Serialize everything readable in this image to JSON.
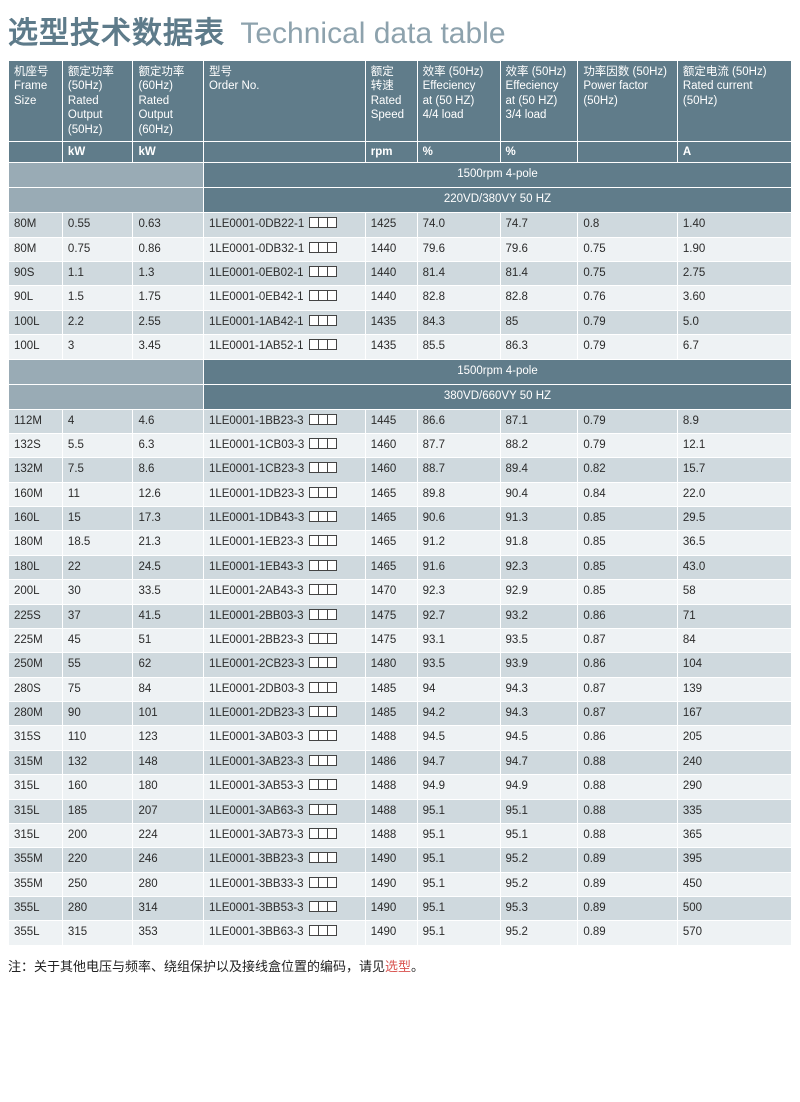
{
  "title": {
    "cn": "选型技术数据表",
    "en": "Technical data table"
  },
  "headers": {
    "frame": "机座号\nFrame\nSize",
    "kw50": "额定功率\n(50Hz)\nRated Output\n(50Hz)",
    "kw60": "额定功率\n(60Hz)\nRated Output\n(60Hz)",
    "order": "型号\nOrder No.",
    "rpm": "额定\n转速\nRated\nSpeed",
    "eff44": "效率  (50Hz)\nEffeciency\nat (50 HZ)\n4/4 load",
    "eff34": "效率 (50Hz)\nEffeciency\nat (50 HZ)\n3/4 load",
    "pf": "功率因数 (50Hz)\nPower factor\n(50Hz)",
    "cur": "额定电流  (50Hz)\nRated current\n(50Hz)"
  },
  "units": {
    "kw50": "kW",
    "kw60": "kW",
    "rpm": "rpm",
    "eff44": "%",
    "eff34": "%",
    "cur": "A"
  },
  "section1": {
    "pole": "1500rpm 4-pole",
    "volt": "220VD/380VY  50 HZ"
  },
  "section2": {
    "pole": "1500rpm 4-pole",
    "volt": "380VD/660VY  50 HZ"
  },
  "rows1": [
    {
      "frame": "80M",
      "kw50": "0.55",
      "kw60": "0.63",
      "order": "1LE0001-0DB22-1",
      "rpm": "1425",
      "e44": "74.0",
      "e34": "74.7",
      "pf": "0.8",
      "cur": "1.40"
    },
    {
      "frame": "80M",
      "kw50": "0.75",
      "kw60": "0.86",
      "order": "1LE0001-0DB32-1",
      "rpm": "1440",
      "e44": "79.6",
      "e34": "79.6",
      "pf": "0.75",
      "cur": "1.90"
    },
    {
      "frame": "90S",
      "kw50": "1.1",
      "kw60": "1.3",
      "order": "1LE0001-0EB02-1",
      "rpm": "1440",
      "e44": "81.4",
      "e34": "81.4",
      "pf": "0.75",
      "cur": "2.75"
    },
    {
      "frame": "90L",
      "kw50": "1.5",
      "kw60": "1.75",
      "order": "1LE0001-0EB42-1",
      "rpm": "1440",
      "e44": "82.8",
      "e34": "82.8",
      "pf": "0.76",
      "cur": "3.60"
    },
    {
      "frame": "100L",
      "kw50": "2.2",
      "kw60": "2.55",
      "order": "1LE0001-1AB42-1",
      "rpm": "1435",
      "e44": "84.3",
      "e34": "85",
      "pf": "0.79",
      "cur": "5.0"
    },
    {
      "frame": "100L",
      "kw50": "3",
      "kw60": "3.45",
      "order": "1LE0001-1AB52-1",
      "rpm": "1435",
      "e44": "85.5",
      "e34": "86.3",
      "pf": "0.79",
      "cur": "6.7"
    }
  ],
  "rows2": [
    {
      "frame": "112M",
      "kw50": "4",
      "kw60": "4.6",
      "order": "1LE0001-1BB23-3",
      "rpm": "1445",
      "e44": "86.6",
      "e34": "87.1",
      "pf": "0.79",
      "cur": "8.9"
    },
    {
      "frame": "132S",
      "kw50": "5.5",
      "kw60": "6.3",
      "order": "1LE0001-1CB03-3",
      "rpm": "1460",
      "e44": "87.7",
      "e34": "88.2",
      "pf": "0.79",
      "cur": "12.1"
    },
    {
      "frame": "132M",
      "kw50": "7.5",
      "kw60": "8.6",
      "order": "1LE0001-1CB23-3",
      "rpm": "1460",
      "e44": "88.7",
      "e34": "89.4",
      "pf": "0.82",
      "cur": "15.7"
    },
    {
      "frame": "160M",
      "kw50": "11",
      "kw60": "12.6",
      "order": "1LE0001-1DB23-3",
      "rpm": "1465",
      "e44": "89.8",
      "e34": "90.4",
      "pf": "0.84",
      "cur": "22.0"
    },
    {
      "frame": "160L",
      "kw50": "15",
      "kw60": "17.3",
      "order": "1LE0001-1DB43-3",
      "rpm": "1465",
      "e44": "90.6",
      "e34": "91.3",
      "pf": "0.85",
      "cur": "29.5"
    },
    {
      "frame": "180M",
      "kw50": "18.5",
      "kw60": "21.3",
      "order": "1LE0001-1EB23-3",
      "rpm": "1465",
      "e44": "91.2",
      "e34": "91.8",
      "pf": "0.85",
      "cur": "36.5"
    },
    {
      "frame": "180L",
      "kw50": "22",
      "kw60": "24.5",
      "order": "1LE0001-1EB43-3",
      "rpm": "1465",
      "e44": "91.6",
      "e34": "92.3",
      "pf": "0.85",
      "cur": "43.0"
    },
    {
      "frame": "200L",
      "kw50": "30",
      "kw60": "33.5",
      "order": "1LE0001-2AB43-3",
      "rpm": "1470",
      "e44": "92.3",
      "e34": "92.9",
      "pf": "0.85",
      "cur": "58"
    },
    {
      "frame": "225S",
      "kw50": "37",
      "kw60": "41.5",
      "order": "1LE0001-2BB03-3",
      "rpm": "1475",
      "e44": "92.7",
      "e34": "93.2",
      "pf": "0.86",
      "cur": "71"
    },
    {
      "frame": "225M",
      "kw50": "45",
      "kw60": "51",
      "order": "1LE0001-2BB23-3",
      "rpm": "1475",
      "e44": "93.1",
      "e34": "93.5",
      "pf": "0.87",
      "cur": "84"
    },
    {
      "frame": "250M",
      "kw50": "55",
      "kw60": "62",
      "order": "1LE0001-2CB23-3",
      "rpm": "1480",
      "e44": "93.5",
      "e34": "93.9",
      "pf": "0.86",
      "cur": "104"
    },
    {
      "frame": "280S",
      "kw50": "75",
      "kw60": "84",
      "order": "1LE0001-2DB03-3",
      "rpm": "1485",
      "e44": "94",
      "e34": "94.3",
      "pf": "0.87",
      "cur": "139"
    },
    {
      "frame": "280M",
      "kw50": "90",
      "kw60": "101",
      "order": "1LE0001-2DB23-3",
      "rpm": "1485",
      "e44": "94.2",
      "e34": "94.3",
      "pf": "0.87",
      "cur": "167"
    },
    {
      "frame": "315S",
      "kw50": "110",
      "kw60": "123",
      "order": "1LE0001-3AB03-3",
      "rpm": "1488",
      "e44": "94.5",
      "e34": "94.5",
      "pf": "0.86",
      "cur": "205"
    },
    {
      "frame": "315M",
      "kw50": "132",
      "kw60": "148",
      "order": "1LE0001-3AB23-3",
      "rpm": "1486",
      "e44": "94.7",
      "e34": "94.7",
      "pf": "0.88",
      "cur": "240"
    },
    {
      "frame": "315L",
      "kw50": "160",
      "kw60": "180",
      "order": "1LE0001-3AB53-3",
      "rpm": "1488",
      "e44": "94.9",
      "e34": "94.9",
      "pf": "0.88",
      "cur": "290"
    },
    {
      "frame": "315L",
      "kw50": "185",
      "kw60": "207",
      "order": "1LE0001-3AB63-3",
      "rpm": "1488",
      "e44": "95.1",
      "e34": "95.1",
      "pf": "0.88",
      "cur": "335"
    },
    {
      "frame": "315L",
      "kw50": "200",
      "kw60": "224",
      "order": "1LE0001-3AB73-3",
      "rpm": "1488",
      "e44": "95.1",
      "e34": "95.1",
      "pf": "0.88",
      "cur": "365"
    },
    {
      "frame": "355M",
      "kw50": "220",
      "kw60": "246",
      "order": "1LE0001-3BB23-3",
      "rpm": "1490",
      "e44": "95.1",
      "e34": "95.2",
      "pf": "0.89",
      "cur": "395"
    },
    {
      "frame": "355M",
      "kw50": "250",
      "kw60": "280",
      "order": "1LE0001-3BB33-3",
      "rpm": "1490",
      "e44": "95.1",
      "e34": "95.2",
      "pf": "0.89",
      "cur": "450"
    },
    {
      "frame": "355L",
      "kw50": "280",
      "kw60": "314",
      "order": "1LE0001-3BB53-3",
      "rpm": "1490",
      "e44": "95.1",
      "e34": "95.3",
      "pf": "0.89",
      "cur": "500"
    },
    {
      "frame": "355L",
      "kw50": "315",
      "kw60": "353",
      "order": "1LE0001-3BB63-3",
      "rpm": "1490",
      "e44": "95.1",
      "e34": "95.2",
      "pf": "0.89",
      "cur": "570"
    }
  ],
  "note": {
    "pre": "注：关于其他电压与频率、绕组保护以及接线盒位置的编码，请见",
    "link": "选型",
    "post": "。"
  },
  "colors": {
    "header_bg": "#607c8a",
    "row_a": "#cfd9de",
    "row_b": "#eef2f4",
    "blank": "#99abb5",
    "title1": "#5e7b8a",
    "title2": "#8da2ad"
  }
}
